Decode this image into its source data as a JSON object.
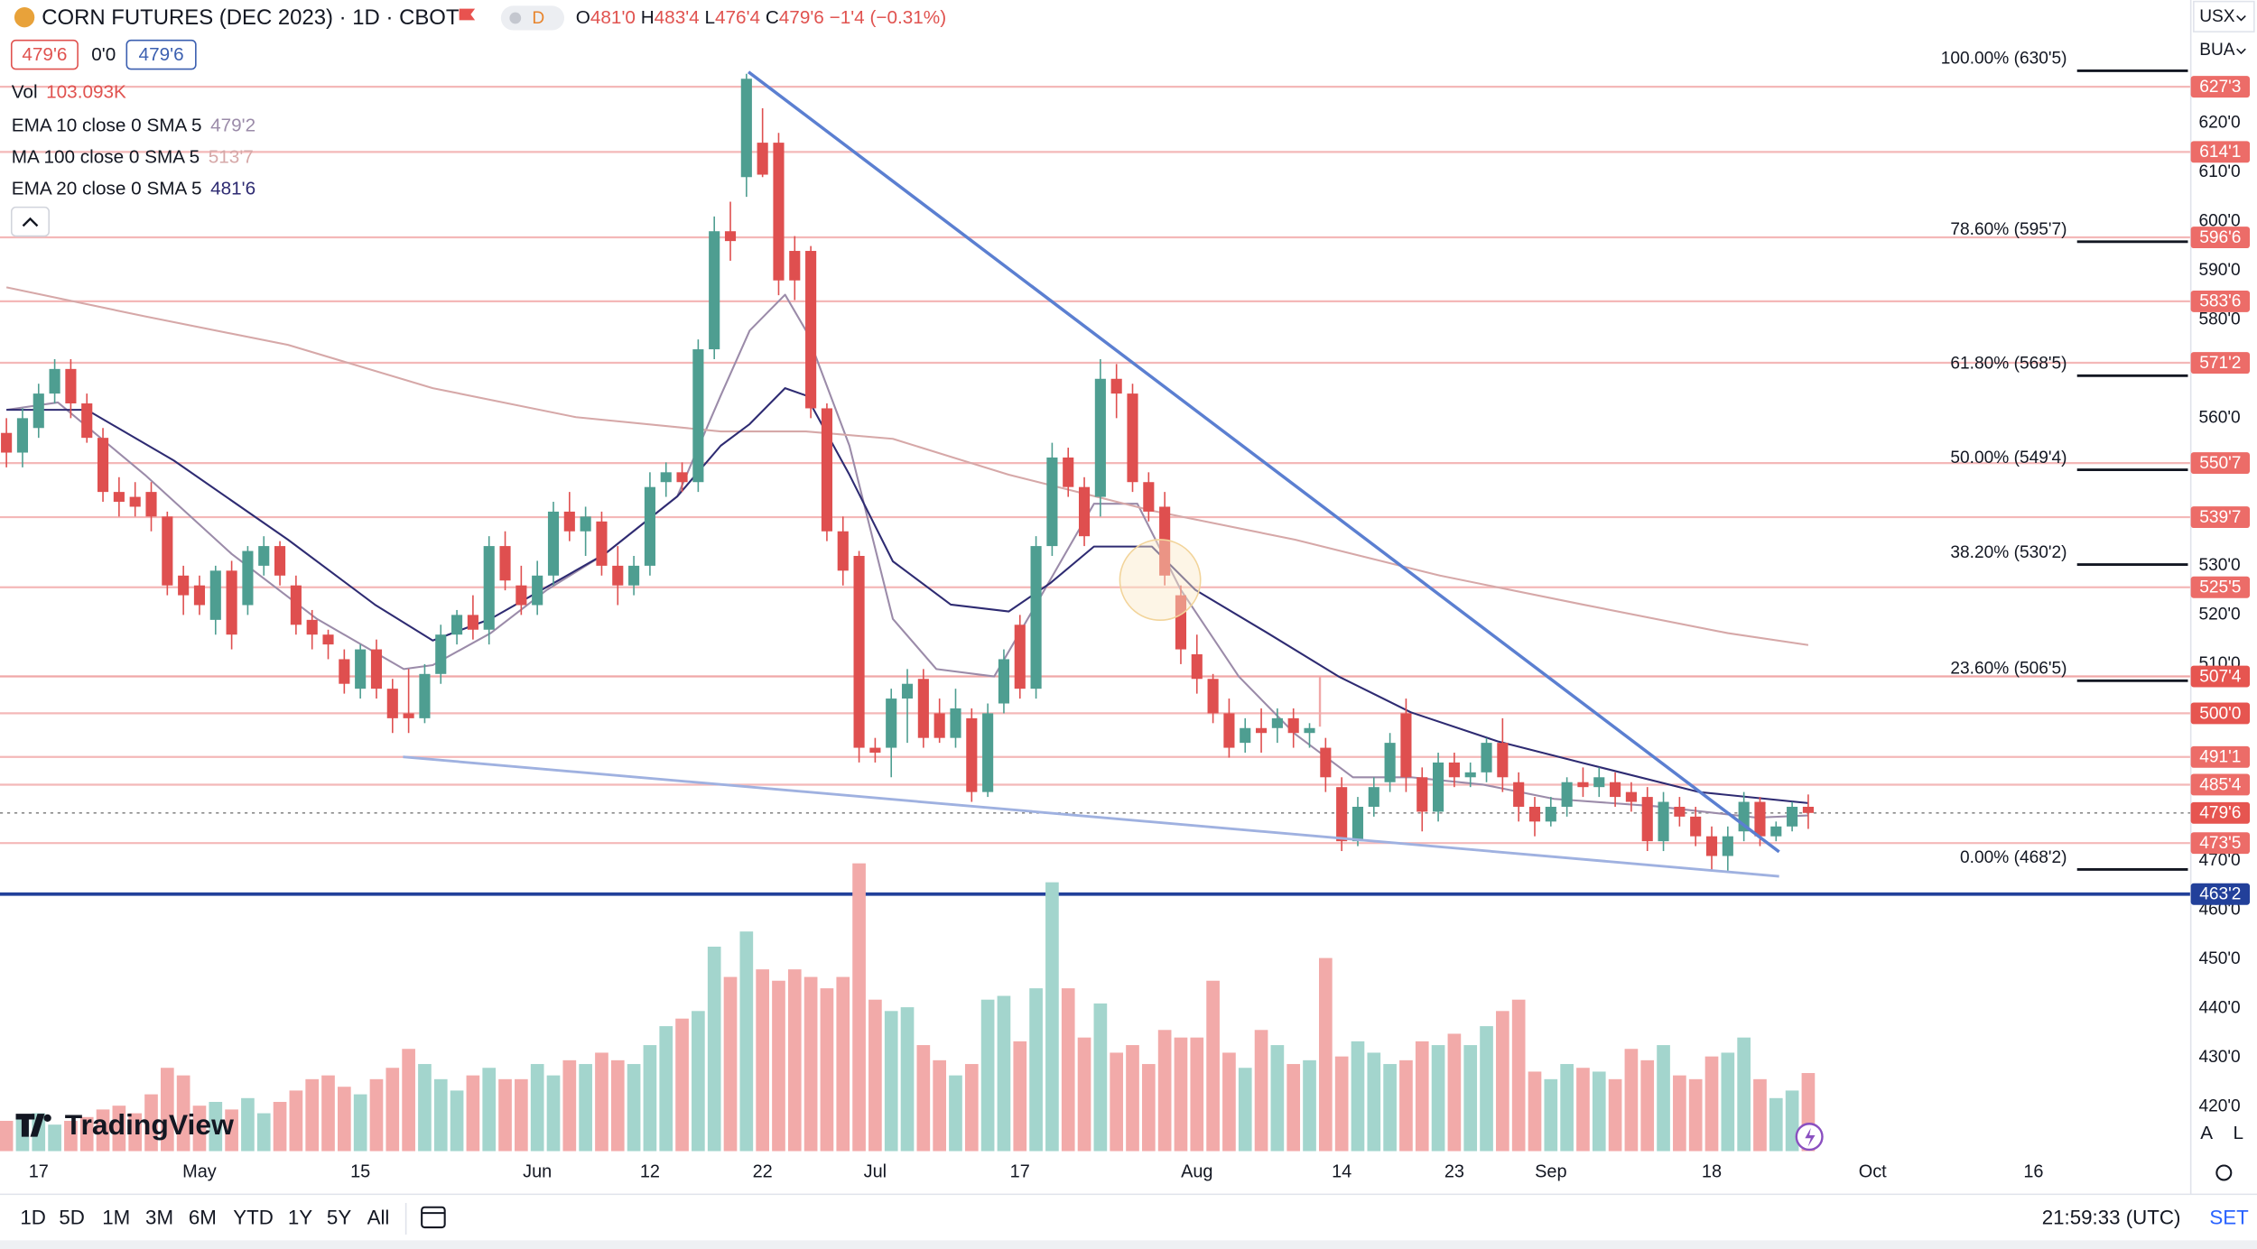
{
  "header": {
    "title": "CORN FUTURES (DEC 2023) · 1D · CBOT",
    "badge": "D",
    "ohlc": [
      {
        "key": "O",
        "value": "481'0"
      },
      {
        "key": "H",
        "value": "483'4"
      },
      {
        "key": "L",
        "value": "476'4"
      },
      {
        "key": "C",
        "value": "479'6"
      }
    ],
    "change": "−1'4 (−0.31%)",
    "quote": [
      "479'6",
      "0'0",
      "479'6"
    ],
    "currency": "USX",
    "unit": "BUA",
    "brand": "TradingView"
  },
  "toolbar": {
    "periods": [
      "1D",
      "5D",
      "1M",
      "3M",
      "6M",
      "YTD",
      "1Y",
      "5Y",
      "All"
    ],
    "clock": "21:59:33 (UTC)",
    "settings": "SET",
    "scale_auto": "A",
    "scale_log": "L"
  },
  "chart_data": {
    "type": "candlestick",
    "up_color": "#4e9e91",
    "down_color": "#df4f4f",
    "xlim": [
      -0.4,
      135.6
    ],
    "ylim": [
      411,
      645
    ],
    "xticks": [
      {
        "value": 2,
        "label": "17"
      },
      {
        "value": 12,
        "label": "May"
      },
      {
        "value": 22,
        "label": "15"
      },
      {
        "value": 33,
        "label": "Jun"
      },
      {
        "value": 40,
        "label": "12"
      },
      {
        "value": 47,
        "label": "22"
      },
      {
        "value": 54,
        "label": "Jul"
      },
      {
        "value": 63,
        "label": "17"
      },
      {
        "value": 74,
        "label": "Aug"
      },
      {
        "value": 83,
        "label": "14"
      },
      {
        "value": 90,
        "label": "23"
      },
      {
        "value": 96,
        "label": "Sep"
      },
      {
        "value": 106,
        "label": "18"
      },
      {
        "value": 116,
        "label": "Oct"
      },
      {
        "value": 126,
        "label": "16"
      }
    ],
    "yticks": [
      {
        "value": 620,
        "label": "620'0"
      },
      {
        "value": 610,
        "label": "610'0"
      },
      {
        "value": 600,
        "label": "600'0"
      },
      {
        "value": 590,
        "label": "590'0"
      },
      {
        "value": 580,
        "label": "580'0"
      },
      {
        "value": 560,
        "label": "560'0"
      },
      {
        "value": 530,
        "label": "530'0"
      },
      {
        "value": 520,
        "label": "520'0"
      },
      {
        "value": 510,
        "label": "510'0"
      },
      {
        "value": 470,
        "label": "470'0"
      },
      {
        "value": 460,
        "label": "460'0"
      },
      {
        "value": 450,
        "label": "450'0"
      },
      {
        "value": 440,
        "label": "440'0"
      },
      {
        "value": 430,
        "label": "430'0"
      },
      {
        "value": 420,
        "label": "420'0"
      }
    ],
    "grid": false,
    "open": [
      557,
      553,
      558,
      565,
      570,
      563,
      556,
      545,
      544,
      545,
      540,
      528,
      526,
      519,
      529,
      522,
      530,
      534,
      526,
      519,
      516,
      511,
      505,
      513,
      505,
      500,
      499,
      508,
      516,
      520,
      517,
      534,
      526,
      522,
      528,
      541,
      537,
      539,
      530,
      526,
      530,
      547,
      549,
      547,
      574,
      598,
      609,
      616,
      616,
      594,
      594,
      562,
      537,
      532,
      493,
      493,
      503,
      507,
      500,
      495,
      499,
      484,
      502,
      518,
      505,
      534,
      552,
      546,
      544,
      568,
      565,
      547,
      542,
      524,
      512,
      507,
      500,
      494,
      497,
      497,
      499,
      496,
      493,
      485,
      474,
      481,
      486,
      500,
      487,
      480,
      490,
      487,
      488,
      494,
      486,
      481,
      478,
      481,
      486,
      485,
      486,
      484,
      483,
      474,
      481,
      479,
      475,
      471,
      476,
      482,
      475,
      477,
      481
    ],
    "high": [
      560,
      562,
      567,
      572,
      572,
      565,
      558,
      548,
      547,
      547,
      541,
      530,
      528,
      530,
      531,
      534,
      536,
      535,
      528,
      521,
      517,
      513,
      514,
      515,
      507,
      509,
      510,
      518,
      521,
      524,
      536,
      537,
      530,
      531,
      543,
      545,
      542,
      541,
      534,
      532,
      549,
      551,
      551,
      576,
      601,
      604,
      630,
      623,
      618,
      597,
      595,
      563,
      540,
      533,
      495,
      505,
      509,
      509,
      503,
      505,
      501,
      502,
      513,
      520,
      536,
      555,
      554,
      548,
      572,
      571,
      567,
      549,
      545,
      526,
      516,
      508,
      503,
      499,
      501,
      501,
      501,
      498,
      495,
      487,
      483,
      487,
      496,
      503,
      489,
      492,
      492,
      490,
      495,
      499,
      488,
      483,
      483,
      487,
      489,
      489,
      488,
      486,
      485,
      484,
      483,
      481,
      477,
      477,
      484,
      483,
      478,
      482,
      483.5
    ],
    "low": [
      550,
      550,
      556,
      563,
      560,
      555,
      543,
      540,
      540,
      537,
      524,
      520,
      520,
      516,
      513,
      520,
      528,
      526,
      516,
      513,
      511,
      504,
      503,
      503,
      496,
      496,
      498,
      506,
      514,
      515,
      514,
      525,
      520,
      520,
      526,
      535,
      532,
      528,
      522,
      524,
      528,
      544,
      545,
      545,
      572,
      592,
      605,
      609,
      585,
      584,
      560,
      535,
      526,
      490,
      490,
      487,
      494,
      493,
      494,
      493,
      482,
      483,
      500,
      503,
      503,
      532,
      544,
      534,
      540,
      560,
      545,
      539,
      526,
      510,
      504,
      498,
      491,
      492,
      492,
      494,
      493,
      493,
      484,
      472,
      473,
      479,
      484,
      484,
      476,
      478,
      485,
      485,
      486,
      484,
      478,
      475,
      477,
      479,
      483,
      483,
      481,
      480,
      472,
      472,
      477,
      473,
      468,
      468,
      474,
      473,
      474,
      476,
      476.5
    ],
    "close": [
      553,
      560,
      565,
      570,
      563,
      556,
      545,
      543,
      542,
      540,
      526,
      524,
      522,
      529,
      516,
      533,
      534,
      528,
      518,
      516,
      514,
      506,
      513,
      505,
      499,
      499,
      508,
      516,
      520,
      517,
      534,
      527,
      522,
      528,
      541,
      537,
      540,
      530,
      526,
      530,
      546,
      549,
      547,
      574,
      598,
      596,
      629,
      609.5,
      588,
      588,
      562,
      537,
      529,
      493,
      492,
      503,
      506,
      495,
      495,
      501,
      484,
      500,
      511,
      505,
      534,
      552,
      546,
      536,
      568,
      565,
      547,
      541,
      528,
      513,
      507,
      500,
      493,
      497,
      496,
      499,
      496,
      497,
      487,
      474,
      481,
      485,
      494,
      487,
      480,
      490,
      487,
      488,
      494,
      487,
      481,
      478,
      481,
      486,
      485,
      487,
      483,
      482,
      474,
      482,
      479,
      475,
      471,
      475,
      482,
      475,
      477,
      481,
      479.75
    ],
    "volume": {
      "name": "Vol",
      "value_label": "103.093K",
      "up_color": "#a3d5cd",
      "down_color": "#f2aaa9",
      "values": [
        40,
        45,
        50,
        35,
        40,
        45,
        55,
        60,
        50,
        75,
        110,
        100,
        60,
        65,
        55,
        70,
        50,
        65,
        80,
        95,
        100,
        85,
        75,
        95,
        110,
        135,
        115,
        95,
        80,
        100,
        110,
        95,
        95,
        115,
        100,
        120,
        115,
        130,
        120,
        115,
        140,
        165,
        175,
        185,
        270,
        230,
        290,
        240,
        225,
        240,
        230,
        215,
        230,
        380,
        200,
        185,
        190,
        140,
        120,
        100,
        115,
        200,
        205,
        145,
        215,
        355,
        215,
        150,
        195,
        130,
        140,
        115,
        160,
        150,
        150,
        225,
        130,
        110,
        160,
        140,
        115,
        120,
        255,
        125,
        145,
        130,
        115,
        120,
        145,
        140,
        155,
        140,
        165,
        185,
        200,
        105,
        95,
        115,
        110,
        105,
        95,
        135,
        120,
        140,
        100,
        95,
        125,
        130,
        150,
        95,
        70,
        80,
        103.093
      ]
    },
    "series": [
      {
        "name": "EMA 10 close 0 SMA 5",
        "color": "#9b8ba9",
        "value_label": "479'2",
        "x": [
          0,
          3.2,
          8.6,
          14,
          19.3,
          24.7,
          26.5,
          30.1,
          33.6,
          37.2,
          41.7,
          44.4,
          46.2,
          48.4,
          49.7,
          52.4,
          55.1,
          57.8,
          61.4,
          64,
          67.6,
          70.3,
          73,
          76.6,
          80.1,
          83.7,
          87.3,
          91.8,
          96.2,
          102.5,
          108.8,
          112
        ],
        "values": [
          561.7,
          563.2,
          548.5,
          532.4,
          519.2,
          509,
          509.8,
          516.3,
          525.1,
          532.4,
          544.1,
          564.6,
          577.8,
          585.1,
          577.8,
          554.4,
          519.2,
          509,
          507.5,
          522.1,
          542.6,
          542.6,
          525.1,
          507.5,
          495.8,
          487,
          487,
          485.5,
          482.6,
          481.1,
          478.8,
          479.25
        ]
      },
      {
        "name": "MA 100 close 0 SMA 5",
        "color": "#d6a8a8",
        "value_label": "513'7",
        "x": [
          0,
          8.6,
          17.5,
          26.5,
          35.4,
          44.4,
          49.7,
          55.1,
          62.3,
          71.2,
          80.1,
          89.1,
          98,
          107,
          112
        ],
        "values": [
          586.6,
          580.7,
          574.9,
          566.1,
          560.2,
          557.3,
          557.3,
          555.8,
          548.5,
          541.2,
          535.3,
          528,
          522.1,
          516.3,
          513.875
        ]
      },
      {
        "name": "EMA 20 close 0 SMA 5",
        "color": "#2e2b72",
        "value_label": "481'6",
        "x": [
          0,
          5,
          10.4,
          17.5,
          22.9,
          26.5,
          30.1,
          33.6,
          37.2,
          41.7,
          44.4,
          46.2,
          48.4,
          49.7,
          52.4,
          55.1,
          58.7,
          62.3,
          64.9,
          67.6,
          71.2,
          73.9,
          78.4,
          82.8,
          87.3,
          92.7,
          98,
          105.2,
          112
        ],
        "values": [
          561.7,
          561.7,
          551.4,
          535.3,
          522.1,
          514.8,
          519.2,
          525.7,
          532.4,
          544.1,
          554.4,
          558.8,
          566.1,
          564.6,
          548.5,
          530.9,
          522.1,
          520.7,
          526.5,
          533.9,
          533.9,
          525.1,
          516.3,
          507.5,
          500.2,
          494.3,
          489.9,
          484,
          481.75
        ]
      }
    ],
    "levels": [
      {
        "value": 627.375,
        "label": "627'3",
        "color": "#f4b8b8",
        "tag_color": "#ec6c68"
      },
      {
        "value": 614.125,
        "label": "614'1",
        "color": "#f4b8b8",
        "tag_color": "#ec6c68"
      },
      {
        "value": 596.75,
        "label": "596'6",
        "color": "#f4b8b8",
        "tag_color": "#ec6c68"
      },
      {
        "value": 583.75,
        "label": "583'6",
        "color": "#f4b8b8",
        "tag_color": "#ec6c68"
      },
      {
        "value": 571.25,
        "label": "571'2",
        "color": "#f4b8b8",
        "tag_color": "#ec6c68"
      },
      {
        "value": 550.875,
        "label": "550'7",
        "color": "#f4b8b8",
        "tag_color": "#ec6c68"
      },
      {
        "value": 539.875,
        "label": "539'7",
        "color": "#f4b8b8",
        "tag_color": "#ec6c68"
      },
      {
        "value": 525.625,
        "label": "525'5",
        "color": "#f4b8b8",
        "tag_color": "#ec6c68"
      },
      {
        "value": 507.5,
        "label": "507'4",
        "color": "#f0a8a8",
        "tag_color": "#e65550"
      },
      {
        "value": 500,
        "label": "500'0",
        "color": "#f4b8b8",
        "tag_color": "#e65550"
      },
      {
        "value": 491.125,
        "label": "491'1",
        "color": "#f4b8b8",
        "tag_color": "#ec6c68"
      },
      {
        "value": 485.5,
        "label": "485'4",
        "color": "#f4b8b8",
        "tag_color": "#ec6c68"
      },
      {
        "value": 479.75,
        "label": "479'6",
        "color": "#8a8a8a",
        "tag_color": "#e65550",
        "line_style": "dotted"
      },
      {
        "value": 473.625,
        "label": "473'5",
        "color": "#f4b8b8",
        "tag_color": "#ec6c68"
      },
      {
        "value": 463.25,
        "label": "463'2",
        "color": "#22409a",
        "tag_color": "#22409a",
        "line_style": "thick"
      }
    ],
    "fibonacci": [
      {
        "value": 630.625,
        "label": "100.00% (630'5)"
      },
      {
        "value": 595.875,
        "label": "78.60% (595'7)"
      },
      {
        "value": 568.625,
        "label": "61.80% (568'5)"
      },
      {
        "value": 549.5,
        "label": "50.00% (549'4)"
      },
      {
        "value": 530.25,
        "label": "38.20% (530'2)"
      },
      {
        "value": 506.625,
        "label": "23.60% (506'5)"
      },
      {
        "value": 468.25,
        "label": "0.00% (468'2)"
      }
    ]
  }
}
